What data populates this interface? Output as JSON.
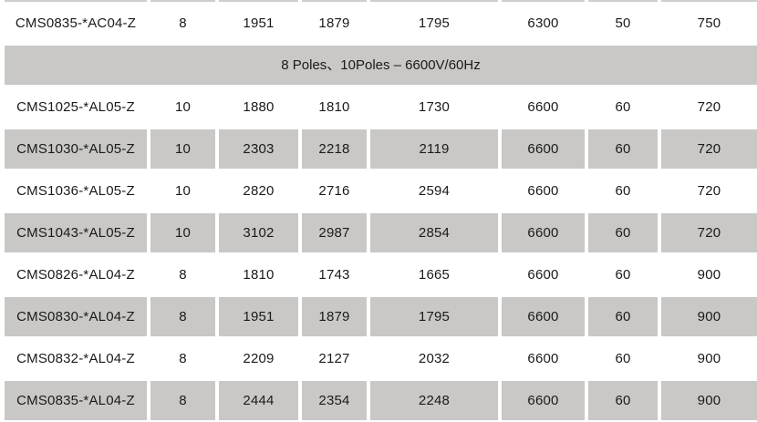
{
  "colors": {
    "band_gray": "#c9c8c6",
    "text": "#1a1a1a",
    "background": "#ffffff"
  },
  "section_header": {
    "label": "8 Poles、10Poles – 6600V/60Hz"
  },
  "rows_above": [
    {
      "shaded": false,
      "cells": [
        "CMS0835-*AC04-Z",
        "8",
        "1951",
        "1879",
        "1795",
        "6300",
        "50",
        "750"
      ]
    }
  ],
  "rows_below": [
    {
      "shaded": false,
      "cells": [
        "CMS1025-*AL05-Z",
        "10",
        "1880",
        "1810",
        "1730",
        "6600",
        "60",
        "720"
      ]
    },
    {
      "shaded": true,
      "cells": [
        "CMS1030-*AL05-Z",
        "10",
        "2303",
        "2218",
        "2119",
        "6600",
        "60",
        "720"
      ]
    },
    {
      "shaded": false,
      "cells": [
        "CMS1036-*AL05-Z",
        "10",
        "2820",
        "2716",
        "2594",
        "6600",
        "60",
        "720"
      ]
    },
    {
      "shaded": true,
      "cells": [
        "CMS1043-*AL05-Z",
        "10",
        "3102",
        "2987",
        "2854",
        "6600",
        "60",
        "720"
      ]
    },
    {
      "shaded": false,
      "cells": [
        "CMS0826-*AL04-Z",
        "8",
        "1810",
        "1743",
        "1665",
        "6600",
        "60",
        "900"
      ]
    },
    {
      "shaded": true,
      "cells": [
        "CMS0830-*AL04-Z",
        "8",
        "1951",
        "1879",
        "1795",
        "6600",
        "60",
        "900"
      ]
    },
    {
      "shaded": false,
      "cells": [
        "CMS0832-*AL04-Z",
        "8",
        "2209",
        "2127",
        "2032",
        "6600",
        "60",
        "900"
      ]
    },
    {
      "shaded": true,
      "cells": [
        "CMS0835-*AL04-Z",
        "8",
        "2444",
        "2354",
        "2248",
        "6600",
        "60",
        "900"
      ]
    }
  ]
}
